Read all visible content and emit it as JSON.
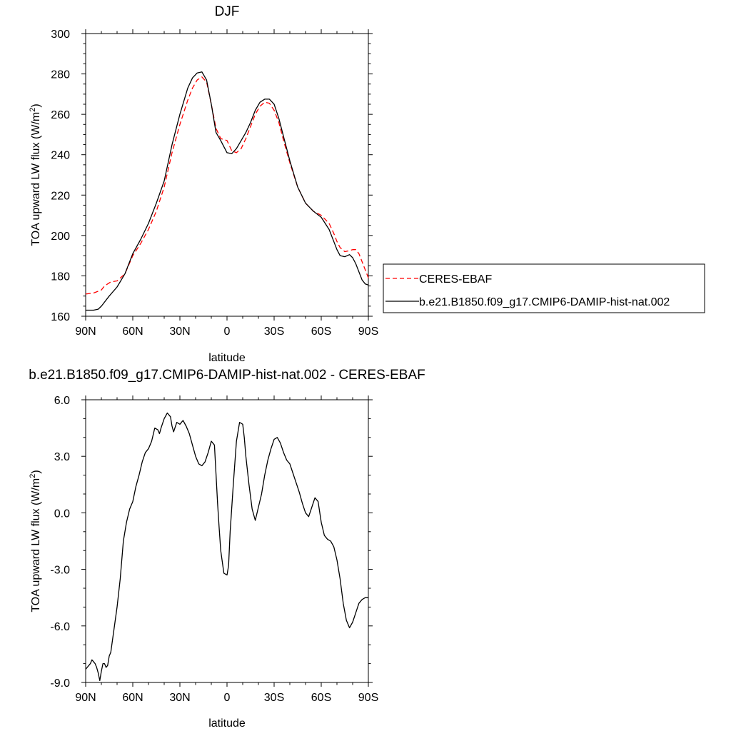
{
  "chart_data": [
    {
      "type": "line",
      "title": "DJF",
      "xlabel": "latitude",
      "ylabel_main": "TOA upward LW flux (W/m",
      "ylabel_sup": "2",
      "ylabel_close": ")",
      "xlim": [
        -90,
        90
      ],
      "ylim": [
        160,
        300
      ],
      "x_ticks": [
        -90,
        -60,
        -30,
        0,
        30,
        60,
        90
      ],
      "x_tick_labels": [
        "90N",
        "60N",
        "30N",
        "0",
        "30S",
        "60S",
        "90S"
      ],
      "y_ticks": [
        160,
        180,
        200,
        220,
        240,
        260,
        280,
        300
      ],
      "y_tick_labels": [
        "160",
        "180",
        "200",
        "220",
        "240",
        "260",
        "280",
        "300"
      ],
      "legend": "right",
      "series": [
        {
          "name": "CERES-EBAF",
          "color": "#ff0000",
          "dash": "dashed",
          "x": [
            -90,
            -85,
            -80,
            -78,
            -74,
            -70,
            -65,
            -60,
            -55,
            -50,
            -45,
            -40,
            -35,
            -30,
            -25,
            -22,
            -19,
            -16,
            -13,
            -10,
            -7,
            -4,
            0,
            3,
            6,
            9,
            12,
            15,
            18,
            21,
            24,
            27,
            30,
            33,
            36,
            40,
            45,
            50,
            55,
            60,
            65,
            68,
            70,
            72,
            75,
            78,
            80,
            82,
            84,
            86,
            88,
            90
          ],
          "y": [
            171,
            171.5,
            173,
            175,
            177,
            177.5,
            181,
            190,
            196,
            203,
            212,
            224,
            241,
            255,
            267,
            273,
            277,
            278.5,
            276,
            265,
            253,
            248,
            247,
            242,
            241,
            243,
            248,
            254,
            260,
            264,
            266,
            265.5,
            262,
            256,
            247,
            236,
            224,
            216,
            212,
            210,
            206,
            201,
            197,
            194,
            192,
            192.5,
            193,
            193,
            191,
            187,
            183,
            179
          ]
        },
        {
          "name": "b.e21.B1850.f09_g17.CMIP6-DAMIP-hist-nat.002",
          "color": "#000000",
          "dash": "solid",
          "x": [
            -90,
            -85,
            -82,
            -80,
            -75,
            -70,
            -65,
            -60,
            -55,
            -50,
            -45,
            -40,
            -35,
            -30,
            -25,
            -22,
            -19,
            -16,
            -13,
            -10,
            -7,
            -4,
            0,
            3,
            6,
            9,
            12,
            15,
            18,
            21,
            24,
            27,
            30,
            33,
            36,
            40,
            45,
            50,
            55,
            60,
            65,
            68,
            70,
            72,
            75,
            78,
            80,
            82,
            84,
            86,
            88,
            90
          ],
          "y": [
            163,
            163,
            163.5,
            165,
            170,
            174.5,
            181,
            191,
            198,
            206,
            216,
            227,
            245,
            260,
            273,
            278,
            280.5,
            281,
            277,
            265,
            251,
            247,
            241,
            240.5,
            243,
            247,
            251,
            256,
            262,
            266,
            267.5,
            267.5,
            265,
            258,
            249,
            237,
            224,
            216,
            212,
            209,
            203,
            197,
            193,
            190,
            189.5,
            190.5,
            189,
            186,
            182,
            178,
            176,
            175.5
          ]
        }
      ]
    },
    {
      "type": "line",
      "title": "b.e21.B1850.f09_g17.CMIP6-DAMIP-hist-nat.002 - CERES-EBAF",
      "xlabel": "latitude",
      "ylabel_main": "TOA upward LW flux (W/m",
      "ylabel_sup": "2",
      "ylabel_close": ")",
      "xlim": [
        -90,
        90
      ],
      "ylim": [
        -9,
        6
      ],
      "x_ticks": [
        -90,
        -60,
        -30,
        0,
        30,
        60,
        90
      ],
      "x_tick_labels": [
        "90N",
        "60N",
        "30N",
        "0",
        "30S",
        "60S",
        "90S"
      ],
      "y_ticks": [
        -9,
        -6,
        -3,
        0,
        3,
        6
      ],
      "y_tick_labels": [
        "-9.0",
        "-6.0",
        "-3.0",
        "0.0",
        "3.0",
        "6.0"
      ],
      "series": [
        {
          "name": "",
          "color": "#000000",
          "dash": "solid",
          "x": [
            -90,
            -87,
            -86,
            -84,
            -83,
            -82,
            -81,
            -80,
            -79,
            -78,
            -77,
            -76,
            -75,
            -74,
            -73,
            -72,
            -70,
            -68,
            -66,
            -64,
            -62,
            -60,
            -58,
            -56,
            -54,
            -52,
            -50,
            -48,
            -46,
            -44,
            -43,
            -42,
            -40,
            -38,
            -36,
            -35,
            -34,
            -32,
            -30,
            -28,
            -26,
            -24,
            -22,
            -20,
            -18,
            -16,
            -14,
            -12,
            -10,
            -8,
            -6,
            -5,
            -4,
            -2,
            0,
            1,
            2,
            4,
            6,
            8,
            10,
            11,
            12,
            14,
            16,
            18,
            20,
            22,
            24,
            26,
            28,
            30,
            32,
            34,
            36,
            38,
            40,
            42,
            44,
            46,
            48,
            50,
            52,
            54,
            56,
            58,
            60,
            62,
            64,
            66,
            68,
            70,
            72,
            74,
            76,
            78,
            80,
            82,
            84,
            86,
            88,
            89,
            90
          ],
          "y": [
            -8.3,
            -8.0,
            -7.8,
            -8.0,
            -8.2,
            -8.5,
            -8.9,
            -8.4,
            -8.0,
            -8.0,
            -8.2,
            -8.1,
            -7.6,
            -7.4,
            -6.8,
            -6.2,
            -5.0,
            -3.5,
            -1.5,
            -0.5,
            0.2,
            0.6,
            1.4,
            2.0,
            2.7,
            3.2,
            3.4,
            3.8,
            4.5,
            4.4,
            4.2,
            4.5,
            5.0,
            5.3,
            5.1,
            4.6,
            4.3,
            4.8,
            4.7,
            4.9,
            4.6,
            4.2,
            3.6,
            3.0,
            2.6,
            2.5,
            2.7,
            3.2,
            3.8,
            3.6,
            0.5,
            -0.8,
            -2.0,
            -3.2,
            -3.3,
            -2.8,
            -1.0,
            1.5,
            3.8,
            4.8,
            4.7,
            4.0,
            3.0,
            1.5,
            0.2,
            -0.4,
            0.3,
            1.0,
            2.0,
            2.8,
            3.4,
            3.9,
            4.0,
            3.7,
            3.2,
            2.8,
            2.6,
            2.1,
            1.6,
            1.1,
            0.5,
            0.0,
            -0.2,
            0.3,
            0.8,
            0.6,
            -0.5,
            -1.2,
            -1.4,
            -1.5,
            -1.8,
            -2.5,
            -3.5,
            -4.8,
            -5.7,
            -6.1,
            -5.8,
            -5.3,
            -4.8,
            -4.6,
            -4.5,
            -4.5,
            -4.5
          ]
        }
      ]
    }
  ]
}
